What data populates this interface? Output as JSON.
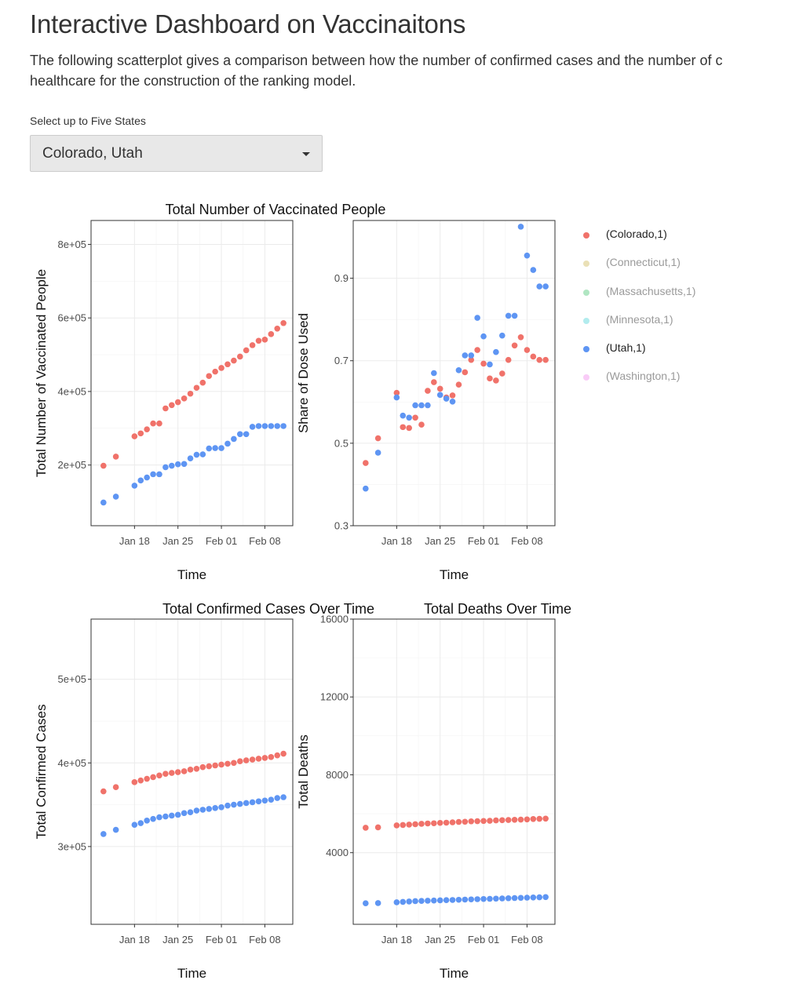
{
  "page": {
    "title": "Interactive Dashboard on Vaccinaitons",
    "description": "The following scatterplot gives a comparison between how the number of confirmed cases and the number of c healthcare for the construction of the ranking model."
  },
  "selector": {
    "label": "Select up to Five States",
    "value": "Colorado, Utah"
  },
  "legend": [
    {
      "label": "(Colorado,1)",
      "color": "#F0726A",
      "visible": true
    },
    {
      "label": "(Connecticut,1)",
      "color": "#D8C77A",
      "visible": false
    },
    {
      "label": "(Massachusetts,1)",
      "color": "#6FD28F",
      "visible": false
    },
    {
      "label": "(Minnesota,1)",
      "color": "#72DDE0",
      "visible": false
    },
    {
      "label": "(Utah,1)",
      "color": "#5E95F3",
      "visible": true
    },
    {
      "label": "(Washington,1)",
      "color": "#F4A3F0",
      "visible": false
    }
  ],
  "chart_data": [
    {
      "type": "scatter",
      "title": "Total Number of Vaccinated People",
      "xlabel": "Time",
      "ylabel": "Total Number of Vaccinated People",
      "x_ticks": [
        "Jan 18",
        "Jan 25",
        "Feb 01",
        "Feb 08"
      ],
      "y_ticks": [
        "2e+05",
        "4e+05",
        "6e+05",
        "8e+05"
      ],
      "ylim": [
        35000,
        865000
      ],
      "x": [
        13,
        15,
        18,
        19,
        20,
        21,
        22,
        23,
        24,
        25,
        26,
        27,
        28,
        29,
        30,
        31,
        32,
        33,
        34,
        35,
        36,
        37,
        38,
        39,
        40,
        41,
        42
      ],
      "series": [
        {
          "name": "(Colorado,1)",
          "color": "#F0726A",
          "values": [
            198000,
            223000,
            278000,
            286000,
            297000,
            313000,
            313000,
            354000,
            363000,
            371000,
            381000,
            394000,
            410000,
            424000,
            442000,
            454000,
            464000,
            474000,
            484000,
            495000,
            512000,
            526000,
            538000,
            541000,
            556000,
            571000,
            586000
          ]
        },
        {
          "name": "(Utah,1)",
          "color": "#5E95F3",
          "values": [
            98000,
            114000,
            144000,
            158000,
            166000,
            175000,
            175000,
            194000,
            198000,
            202000,
            203000,
            218000,
            228000,
            229000,
            245000,
            246000,
            246000,
            258000,
            271000,
            284000,
            284000,
            304000,
            306000,
            306000,
            306000,
            306000,
            306000
          ]
        }
      ]
    },
    {
      "type": "scatter",
      "title": "",
      "xlabel": "Time",
      "ylabel": "Share of Dose Used",
      "x_ticks": [
        "Jan 18",
        "Jan 25",
        "Feb 01",
        "Feb 08"
      ],
      "y_ticks": [
        "0.3",
        "0.5",
        "0.7",
        "0.9"
      ],
      "ylim": [
        0.3,
        1.04
      ],
      "x": [
        13,
        15,
        18,
        19,
        20,
        21,
        22,
        23,
        24,
        25,
        26,
        27,
        28,
        29,
        30,
        31,
        32,
        33,
        34,
        35,
        36,
        37,
        38,
        39,
        40,
        41,
        42
      ],
      "series": [
        {
          "name": "(Colorado,1)",
          "color": "#F0726A",
          "values": [
            0.452,
            0.512,
            0.622,
            0.539,
            0.537,
            0.562,
            0.545,
            0.627,
            0.648,
            0.632,
            0.611,
            0.616,
            0.642,
            0.672,
            0.702,
            0.726,
            0.693,
            0.657,
            0.652,
            0.669,
            0.702,
            0.737,
            0.757,
            0.726,
            0.71,
            0.702,
            0.702
          ]
        },
        {
          "name": "(Utah,1)",
          "color": "#5E95F3",
          "values": [
            0.39,
            0.477,
            0.611,
            0.567,
            0.562,
            0.592,
            0.592,
            0.592,
            0.67,
            0.617,
            0.608,
            0.601,
            0.677,
            0.713,
            0.713,
            0.804,
            0.759,
            0.691,
            0.721,
            0.761,
            0.809,
            0.809,
            1.025,
            0.955,
            0.92,
            0.88,
            0.88
          ]
        }
      ]
    },
    {
      "type": "scatter",
      "title": "Total Confirmed Cases Over Time",
      "xlabel": "Time",
      "ylabel": "Total Confirmed Cases",
      "x_ticks": [
        "Jan 18",
        "Jan 25",
        "Feb 01",
        "Feb 08"
      ],
      "y_ticks": [
        "3e+05",
        "4e+05",
        "5e+05"
      ],
      "ylim": [
        207000,
        572000
      ],
      "x": [
        13,
        15,
        18,
        19,
        20,
        21,
        22,
        23,
        24,
        25,
        26,
        27,
        28,
        29,
        30,
        31,
        32,
        33,
        34,
        35,
        36,
        37,
        38,
        39,
        40,
        41,
        42
      ],
      "series": [
        {
          "name": "(Colorado,1)",
          "color": "#F0726A",
          "values": [
            366000,
            371000,
            377000,
            379000,
            381000,
            383000,
            385000,
            387000,
            388000,
            389000,
            390000,
            392000,
            393000,
            395000,
            396000,
            397000,
            398000,
            399000,
            400000,
            402000,
            403000,
            404000,
            405000,
            406000,
            407000,
            409000,
            411000
          ]
        },
        {
          "name": "(Utah,1)",
          "color": "#5E95F3",
          "values": [
            315000,
            320000,
            326000,
            328000,
            331000,
            333000,
            335000,
            336000,
            337000,
            338000,
            340000,
            341000,
            343000,
            344000,
            345000,
            346000,
            347000,
            349000,
            350000,
            351000,
            352000,
            353000,
            354000,
            355000,
            356000,
            358000,
            359000
          ]
        }
      ]
    },
    {
      "type": "scatter",
      "title": "Total Deaths Over Time",
      "xlabel": "Time",
      "ylabel": "Total Deaths",
      "x_ticks": [
        "Jan 18",
        "Jan 25",
        "Feb 01",
        "Feb 08"
      ],
      "y_ticks": [
        "4000",
        "8000",
        "12000",
        "16000"
      ],
      "ylim": [
        320,
        16000
      ],
      "x": [
        13,
        15,
        18,
        19,
        20,
        21,
        22,
        23,
        24,
        25,
        26,
        27,
        28,
        29,
        30,
        31,
        32,
        33,
        34,
        35,
        36,
        37,
        38,
        39,
        40,
        41,
        42
      ],
      "series": [
        {
          "name": "(Colorado,1)",
          "color": "#F0726A",
          "values": [
            5280,
            5300,
            5400,
            5420,
            5440,
            5460,
            5480,
            5500,
            5510,
            5530,
            5540,
            5560,
            5580,
            5590,
            5610,
            5620,
            5630,
            5640,
            5660,
            5670,
            5680,
            5690,
            5700,
            5710,
            5730,
            5740,
            5750
          ]
        },
        {
          "name": "(Utah,1)",
          "color": "#5E95F3",
          "values": [
            1400,
            1410,
            1450,
            1470,
            1490,
            1510,
            1520,
            1530,
            1540,
            1550,
            1560,
            1570,
            1580,
            1590,
            1600,
            1610,
            1620,
            1630,
            1640,
            1650,
            1660,
            1670,
            1680,
            1690,
            1700,
            1710,
            1720
          ]
        }
      ]
    }
  ]
}
